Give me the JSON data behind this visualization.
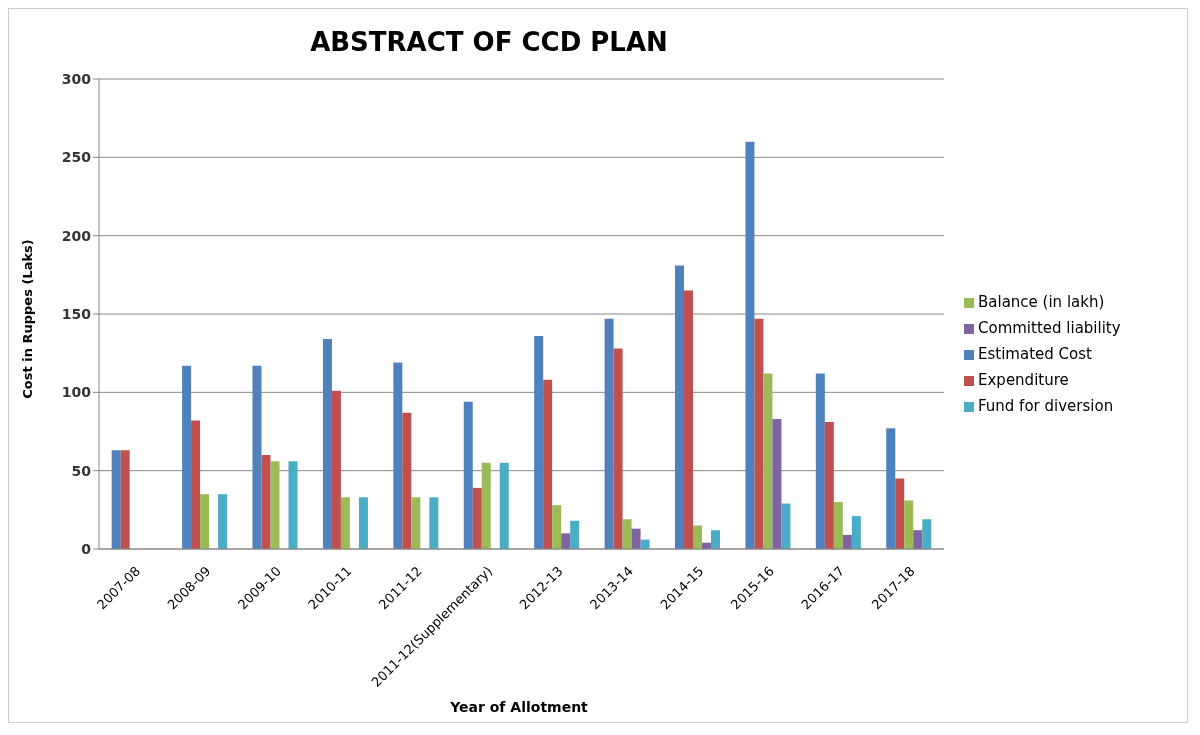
{
  "chart_data": {
    "type": "bar",
    "title": "ABSTRACT OF CCD PLAN",
    "xlabel": "Year of Allotment",
    "ylabel": "Cost in Ruppes (Laks)",
    "categories": [
      "2007-08",
      "2008-09",
      "2009-10",
      "2010-11",
      "2011-12",
      "2011-12(Supplementary)",
      "2012-13",
      "2013-14",
      "2014-15",
      "2015-16",
      "2016-17",
      "2017-18"
    ],
    "series": [
      {
        "name": "Estimated Cost",
        "color": "#4f81bd",
        "values": [
          63,
          117,
          117,
          134,
          119,
          94,
          136,
          147,
          181,
          260,
          112,
          77
        ]
      },
      {
        "name": "Expenditure",
        "color": "#c0504d",
        "values": [
          63,
          82,
          60,
          101,
          87,
          39,
          108,
          128,
          165,
          147,
          81,
          45
        ]
      },
      {
        "name": "Balance (in lakh)",
        "color": "#9bbb59",
        "values": [
          null,
          35,
          56,
          33,
          33,
          55,
          28,
          19,
          15,
          112,
          30,
          31
        ]
      },
      {
        "name": "Committed liability",
        "color": "#8064a2",
        "values": [
          null,
          null,
          null,
          null,
          null,
          null,
          10,
          13,
          4,
          83,
          9,
          12
        ]
      },
      {
        "name": "Fund for diversion",
        "color": "#4bacc6",
        "values": [
          null,
          35,
          56,
          33,
          33,
          55,
          18,
          6,
          12,
          29,
          21,
          19
        ]
      }
    ],
    "ylim": [
      0,
      300
    ],
    "yticks": [
      0,
      50,
      100,
      150,
      200,
      250,
      300
    ],
    "grid": "y",
    "legend": "right"
  }
}
